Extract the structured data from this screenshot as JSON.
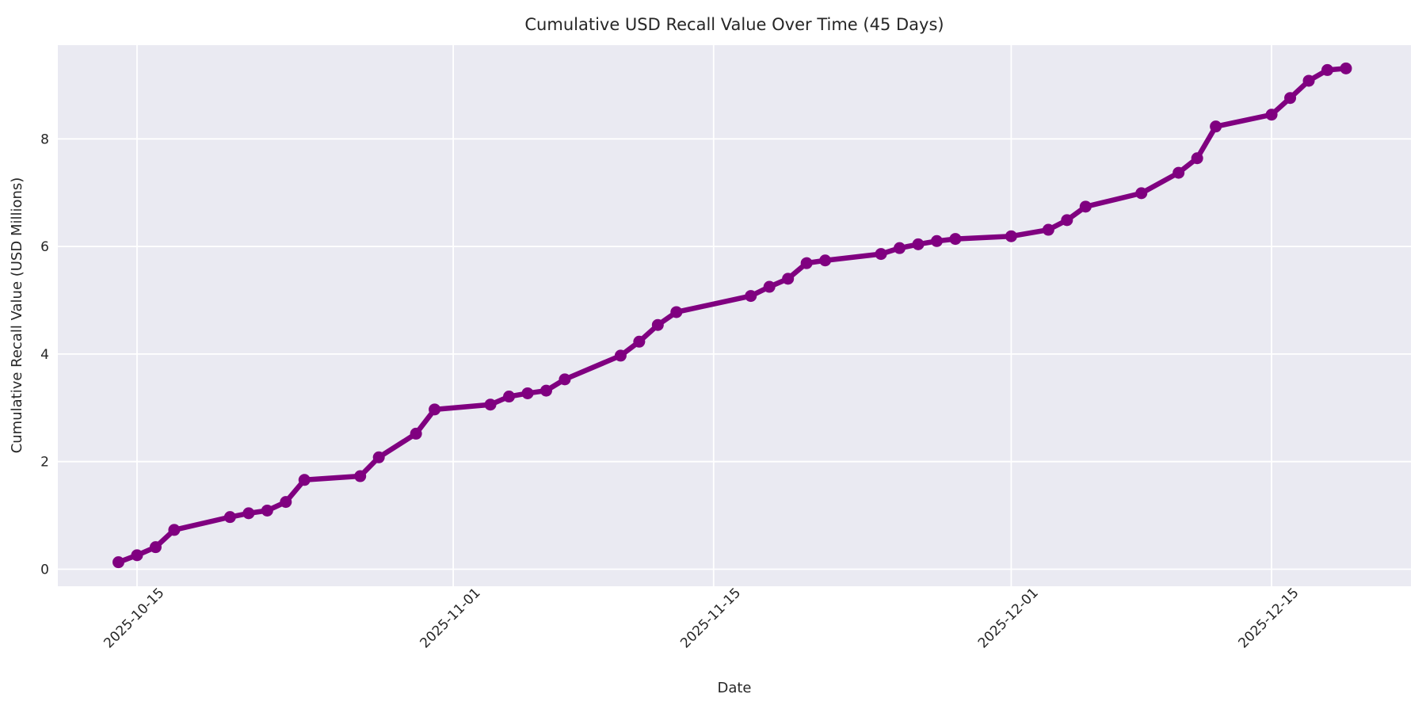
{
  "figure": {
    "background": "#FFFFFF"
  },
  "chart_data": {
    "type": "line",
    "title": "Cumulative USD Recall Value Over Time (45 Days)",
    "xlabel": "Date",
    "ylabel": "Cumulative Recall Value (USD Millions)",
    "grid": true,
    "legend": false,
    "plot_background": "#EAEAF2",
    "grid_color": "#FFFFFF",
    "text_color": "#262626",
    "x_tick_labels": [
      "2025-10-15",
      "2025-11-01",
      "2025-11-15",
      "2025-12-01",
      "2025-12-15"
    ],
    "y_tick_labels": [
      "0",
      "2",
      "4",
      "6",
      "8"
    ],
    "y_ticks": [
      0,
      2,
      4,
      6,
      8
    ],
    "ylim": [
      -0.32,
      9.74
    ],
    "xlim": [
      "2025-10-11",
      "2025-12-22"
    ],
    "x_tick_rotation_deg": 45,
    "series": [
      {
        "name": "cumulative-recall-value",
        "color": "#800080",
        "marker": "circle",
        "points": [
          [
            "2025-10-14",
            0.13
          ],
          [
            "2025-10-15",
            0.26
          ],
          [
            "2025-10-16",
            0.41
          ],
          [
            "2025-10-17",
            0.73
          ],
          [
            "2025-10-20",
            0.97
          ],
          [
            "2025-10-21",
            1.04
          ],
          [
            "2025-10-22",
            1.09
          ],
          [
            "2025-10-23",
            1.25
          ],
          [
            "2025-10-24",
            1.66
          ],
          [
            "2025-10-27",
            1.73
          ],
          [
            "2025-10-28",
            2.08
          ],
          [
            "2025-10-30",
            2.52
          ],
          [
            "2025-10-31",
            2.97
          ],
          [
            "2025-11-03",
            3.06
          ],
          [
            "2025-11-04",
            3.21
          ],
          [
            "2025-11-05",
            3.27
          ],
          [
            "2025-11-06",
            3.32
          ],
          [
            "2025-11-07",
            3.53
          ],
          [
            "2025-11-10",
            3.97
          ],
          [
            "2025-11-11",
            4.23
          ],
          [
            "2025-11-12",
            4.54
          ],
          [
            "2025-11-13",
            4.78
          ],
          [
            "2025-11-17",
            5.08
          ],
          [
            "2025-11-18",
            5.25
          ],
          [
            "2025-11-19",
            5.4
          ],
          [
            "2025-11-20",
            5.69
          ],
          [
            "2025-11-21",
            5.74
          ],
          [
            "2025-11-24",
            5.86
          ],
          [
            "2025-11-25",
            5.97
          ],
          [
            "2025-11-26",
            6.04
          ],
          [
            "2025-11-27",
            6.1
          ],
          [
            "2025-11-28",
            6.14
          ],
          [
            "2025-12-01",
            6.19
          ],
          [
            "2025-12-03",
            6.31
          ],
          [
            "2025-12-04",
            6.49
          ],
          [
            "2025-12-05",
            6.74
          ],
          [
            "2025-12-08",
            6.99
          ],
          [
            "2025-12-10",
            7.37
          ],
          [
            "2025-12-11",
            7.64
          ],
          [
            "2025-12-12",
            8.23
          ],
          [
            "2025-12-15",
            8.45
          ],
          [
            "2025-12-16",
            8.76
          ],
          [
            "2025-12-17",
            9.08
          ],
          [
            "2025-12-18",
            9.28
          ],
          [
            "2025-12-19",
            9.31
          ]
        ]
      }
    ]
  }
}
